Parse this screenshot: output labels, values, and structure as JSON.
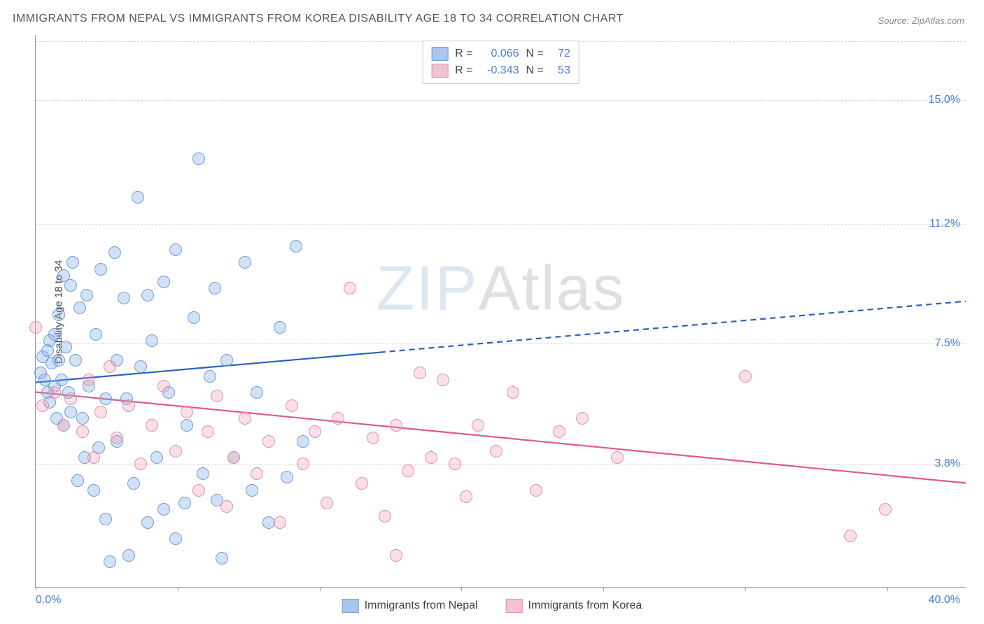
{
  "title": "IMMIGRANTS FROM NEPAL VS IMMIGRANTS FROM KOREA DISABILITY AGE 18 TO 34 CORRELATION CHART",
  "source": "Source: ZipAtlas.com",
  "y_axis_label": "Disability Age 18 to 34",
  "watermark": {
    "part1": "ZIP",
    "part2": "Atlas"
  },
  "chart": {
    "type": "scatter",
    "xlim": [
      0,
      40
    ],
    "ylim": [
      0,
      17
    ],
    "x_min_label": "0.0%",
    "x_max_label": "40.0%",
    "y_ticks": [
      {
        "value": 3.8,
        "label": "3.8%"
      },
      {
        "value": 7.5,
        "label": "7.5%"
      },
      {
        "value": 11.2,
        "label": "11.2%"
      },
      {
        "value": 15.0,
        "label": "15.0%"
      }
    ],
    "x_tick_positions": [
      0,
      6.1,
      12.2,
      18.3,
      24.4,
      30.5,
      36.6
    ],
    "gridline_y": [
      3.8,
      7.5,
      11.2,
      15.0,
      16.8
    ],
    "background_color": "#ffffff",
    "grid_color": "#d5d5d5",
    "marker_radius": 9,
    "marker_stroke_width": 1.2,
    "series": [
      {
        "name": "Immigrants from Nepal",
        "color_fill": "rgba(130,170,225,0.35)",
        "color_stroke": "#6f9fd8",
        "swatch_fill": "#a9c6ec",
        "swatch_stroke": "#6f9fd8",
        "R": "0.066",
        "N": "72",
        "trend": {
          "y_start": 6.3,
          "y_end": 8.8,
          "solid_until_x": 14.8,
          "line_color": "#2b5fc1",
          "line_width": 2.2
        },
        "points": [
          [
            0.2,
            6.6
          ],
          [
            0.3,
            7.1
          ],
          [
            0.4,
            6.4
          ],
          [
            0.5,
            7.3
          ],
          [
            0.5,
            6.0
          ],
          [
            0.6,
            7.6
          ],
          [
            0.6,
            5.7
          ],
          [
            0.7,
            6.9
          ],
          [
            0.8,
            7.8
          ],
          [
            0.8,
            6.2
          ],
          [
            0.9,
            5.2
          ],
          [
            1.0,
            7.0
          ],
          [
            1.0,
            8.4
          ],
          [
            1.1,
            6.4
          ],
          [
            1.2,
            5.0
          ],
          [
            1.2,
            9.6
          ],
          [
            1.3,
            7.4
          ],
          [
            1.4,
            6.0
          ],
          [
            1.5,
            9.3
          ],
          [
            1.5,
            5.4
          ],
          [
            1.6,
            10.0
          ],
          [
            1.7,
            7.0
          ],
          [
            1.8,
            3.3
          ],
          [
            1.9,
            8.6
          ],
          [
            2.0,
            5.2
          ],
          [
            2.1,
            4.0
          ],
          [
            2.2,
            9.0
          ],
          [
            2.3,
            6.2
          ],
          [
            2.5,
            3.0
          ],
          [
            2.6,
            7.8
          ],
          [
            2.7,
            4.3
          ],
          [
            2.8,
            9.8
          ],
          [
            3.0,
            2.1
          ],
          [
            3.0,
            5.8
          ],
          [
            3.2,
            0.8
          ],
          [
            3.4,
            10.3
          ],
          [
            3.5,
            7.0
          ],
          [
            3.5,
            4.5
          ],
          [
            3.8,
            8.9
          ],
          [
            3.9,
            5.8
          ],
          [
            4.0,
            1.0
          ],
          [
            4.2,
            3.2
          ],
          [
            4.4,
            12.0
          ],
          [
            4.5,
            6.8
          ],
          [
            4.8,
            2.0
          ],
          [
            4.8,
            9.0
          ],
          [
            5.0,
            7.6
          ],
          [
            5.2,
            4.0
          ],
          [
            5.5,
            9.4
          ],
          [
            5.5,
            2.4
          ],
          [
            5.7,
            6.0
          ],
          [
            6.0,
            10.4
          ],
          [
            6.0,
            1.5
          ],
          [
            6.4,
            2.6
          ],
          [
            6.5,
            5.0
          ],
          [
            6.8,
            8.3
          ],
          [
            7.0,
            13.2
          ],
          [
            7.2,
            3.5
          ],
          [
            7.5,
            6.5
          ],
          [
            7.7,
            9.2
          ],
          [
            7.8,
            2.7
          ],
          [
            8.0,
            0.9
          ],
          [
            8.2,
            7.0
          ],
          [
            8.5,
            4.0
          ],
          [
            9.0,
            10.0
          ],
          [
            9.3,
            3.0
          ],
          [
            9.5,
            6.0
          ],
          [
            10.0,
            2.0
          ],
          [
            10.5,
            8.0
          ],
          [
            10.8,
            3.4
          ],
          [
            11.2,
            10.5
          ],
          [
            11.5,
            4.5
          ]
        ]
      },
      {
        "name": "Immigrants from Korea",
        "color_fill": "rgba(235,160,185,0.32)",
        "color_stroke": "#e48fab",
        "swatch_fill": "#f3c3d2",
        "swatch_stroke": "#e48fab",
        "R": "-0.343",
        "N": "53",
        "trend": {
          "y_start": 6.0,
          "y_end": 3.2,
          "solid_until_x": 40,
          "line_color": "#e05a8a",
          "line_width": 2.2
        },
        "points": [
          [
            0.0,
            8.0
          ],
          [
            0.3,
            5.6
          ],
          [
            0.8,
            6.0
          ],
          [
            1.2,
            5.0
          ],
          [
            1.5,
            5.8
          ],
          [
            2.0,
            4.8
          ],
          [
            2.3,
            6.4
          ],
          [
            2.5,
            4.0
          ],
          [
            2.8,
            5.4
          ],
          [
            3.2,
            6.8
          ],
          [
            3.5,
            4.6
          ],
          [
            4.0,
            5.6
          ],
          [
            4.5,
            3.8
          ],
          [
            5.0,
            5.0
          ],
          [
            5.5,
            6.2
          ],
          [
            6.0,
            4.2
          ],
          [
            6.5,
            5.4
          ],
          [
            7.0,
            3.0
          ],
          [
            7.4,
            4.8
          ],
          [
            7.8,
            5.9
          ],
          [
            8.2,
            2.5
          ],
          [
            8.5,
            4.0
          ],
          [
            9.0,
            5.2
          ],
          [
            9.5,
            3.5
          ],
          [
            10.0,
            4.5
          ],
          [
            10.5,
            2.0
          ],
          [
            11.0,
            5.6
          ],
          [
            11.5,
            3.8
          ],
          [
            12.0,
            4.8
          ],
          [
            12.5,
            2.6
          ],
          [
            13.0,
            5.2
          ],
          [
            13.5,
            9.2
          ],
          [
            14.0,
            3.2
          ],
          [
            14.5,
            4.6
          ],
          [
            15.0,
            2.2
          ],
          [
            15.5,
            5.0
          ],
          [
            16.0,
            3.6
          ],
          [
            16.5,
            6.6
          ],
          [
            17.0,
            4.0
          ],
          [
            17.5,
            6.4
          ],
          [
            18.0,
            3.8
          ],
          [
            18.5,
            2.8
          ],
          [
            19.0,
            5.0
          ],
          [
            19.8,
            4.2
          ],
          [
            20.5,
            6.0
          ],
          [
            21.5,
            3.0
          ],
          [
            22.5,
            4.8
          ],
          [
            23.5,
            5.2
          ],
          [
            25.0,
            4.0
          ],
          [
            30.5,
            6.5
          ],
          [
            35.0,
            1.6
          ],
          [
            36.5,
            2.4
          ],
          [
            15.5,
            1.0
          ]
        ]
      }
    ]
  },
  "legend_labels": {
    "R": "R =",
    "N": "N ="
  }
}
